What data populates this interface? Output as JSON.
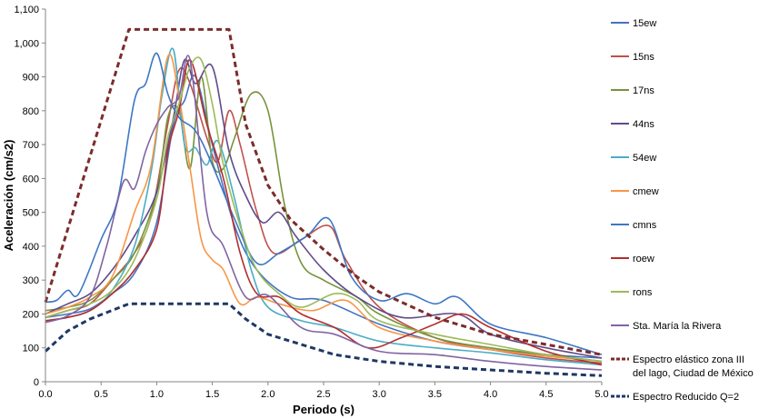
{
  "chart_data": {
    "type": "line",
    "xlabel": "Periodo (s)",
    "ylabel": "Aceleración (cm/s2)",
    "xlim": [
      0,
      5
    ],
    "ylim": [
      0,
      1100
    ],
    "xticks": [
      "0.0",
      "0.5",
      "1.0",
      "1.5",
      "2.0",
      "2.5",
      "3.0",
      "3.5",
      "4.0",
      "4.5",
      "5.0"
    ],
    "yticks": [
      "0",
      "100",
      "200",
      "300",
      "400",
      "500",
      "600",
      "700",
      "800",
      "900",
      "1,000",
      "1,100"
    ],
    "grid": false,
    "legend_position": "right",
    "series": [
      {
        "name": "15ew",
        "color": "#4472C4",
        "style": "solid",
        "x": [
          0,
          0.2,
          0.4,
          0.6,
          0.8,
          1.0,
          1.15,
          1.25,
          1.35,
          1.5,
          1.7,
          1.9,
          2.2,
          2.5,
          3.0,
          3.5,
          4.0,
          4.5,
          5.0
        ],
        "y": [
          190,
          200,
          215,
          260,
          320,
          470,
          760,
          830,
          900,
          700,
          460,
          330,
          250,
          240,
          170,
          120,
          95,
          80,
          70
        ]
      },
      {
        "name": "15ns",
        "color": "#C0504D",
        "style": "solid",
        "x": [
          0,
          0.2,
          0.4,
          0.6,
          0.8,
          0.95,
          1.1,
          1.2,
          1.3,
          1.45,
          1.55,
          1.65,
          1.75,
          1.9,
          2.05,
          2.3,
          2.55,
          2.7,
          3.0,
          3.5,
          4.0,
          4.5,
          5.0
        ],
        "y": [
          190,
          210,
          230,
          300,
          380,
          490,
          760,
          920,
          880,
          720,
          650,
          800,
          700,
          500,
          380,
          420,
          460,
          360,
          220,
          130,
          95,
          70,
          55
        ]
      },
      {
        "name": "17ns",
        "color": "#77933C",
        "style": "solid",
        "x": [
          0,
          0.2,
          0.4,
          0.6,
          0.8,
          1.0,
          1.1,
          1.2,
          1.3,
          1.4,
          1.5,
          1.6,
          1.7,
          1.85,
          2.0,
          2.15,
          2.3,
          2.5,
          2.8,
          3.0,
          3.5,
          4.0,
          4.5,
          5.0
        ],
        "y": [
          210,
          220,
          240,
          300,
          380,
          560,
          780,
          800,
          630,
          900,
          650,
          630,
          720,
          850,
          800,
          520,
          350,
          300,
          250,
          200,
          130,
          100,
          80,
          60
        ]
      },
      {
        "name": "44ns",
        "color": "#5F4B8B",
        "style": "solid",
        "x": [
          0,
          0.2,
          0.4,
          0.6,
          0.8,
          1.0,
          1.15,
          1.25,
          1.35,
          1.5,
          1.65,
          1.8,
          1.95,
          2.1,
          2.25,
          2.5,
          2.8,
          3.2,
          3.7,
          4.0,
          4.5,
          5.0
        ],
        "y": [
          200,
          230,
          260,
          330,
          430,
          560,
          780,
          950,
          880,
          930,
          680,
          550,
          470,
          500,
          430,
          330,
          250,
          190,
          200,
          140,
          100,
          70
        ]
      },
      {
        "name": "54ew",
        "color": "#4BACC6",
        "style": "solid",
        "x": [
          0,
          0.2,
          0.4,
          0.6,
          0.8,
          0.95,
          1.05,
          1.15,
          1.25,
          1.35,
          1.45,
          1.55,
          1.7,
          1.85,
          2.0,
          2.3,
          2.6,
          3.0,
          3.5,
          4.0,
          4.5,
          5.0
        ],
        "y": [
          180,
          190,
          210,
          270,
          400,
          620,
          850,
          980,
          700,
          690,
          640,
          710,
          540,
          330,
          220,
          180,
          160,
          120,
          100,
          85,
          65,
          50
        ]
      },
      {
        "name": "cmew",
        "color": "#F79646",
        "style": "solid",
        "x": [
          0,
          0.2,
          0.4,
          0.6,
          0.8,
          0.95,
          1.1,
          1.2,
          1.3,
          1.4,
          1.5,
          1.6,
          1.75,
          1.9,
          2.1,
          2.4,
          2.7,
          3.0,
          3.5,
          4.0,
          4.5,
          5.0
        ],
        "y": [
          200,
          220,
          250,
          310,
          500,
          640,
          960,
          840,
          630,
          420,
          360,
          330,
          230,
          250,
          230,
          210,
          240,
          160,
          120,
          95,
          75,
          60
        ]
      },
      {
        "name": "cmns",
        "color": "#3D77C4",
        "style": "solid",
        "x": [
          0,
          0.1,
          0.2,
          0.3,
          0.5,
          0.65,
          0.8,
          0.9,
          1.0,
          1.1,
          1.2,
          1.35,
          1.5,
          1.7,
          1.9,
          2.1,
          2.35,
          2.55,
          2.75,
          3.0,
          3.25,
          3.5,
          3.7,
          4.0,
          4.5,
          5.0
        ],
        "y": [
          235,
          240,
          270,
          260,
          420,
          540,
          830,
          880,
          970,
          850,
          780,
          740,
          640,
          480,
          350,
          380,
          430,
          480,
          310,
          240,
          260,
          230,
          250,
          170,
          130,
          80
        ]
      },
      {
        "name": "roew",
        "color": "#B22E2E",
        "style": "solid",
        "x": [
          0,
          0.2,
          0.4,
          0.6,
          0.8,
          1.0,
          1.1,
          1.2,
          1.3,
          1.45,
          1.6,
          1.75,
          1.9,
          2.1,
          2.3,
          2.6,
          2.9,
          3.2,
          3.5,
          3.75,
          4.0,
          4.5,
          5.0
        ],
        "y": [
          180,
          190,
          210,
          260,
          330,
          450,
          680,
          800,
          950,
          760,
          600,
          380,
          260,
          250,
          200,
          160,
          100,
          130,
          170,
          200,
          160,
          90,
          50
        ]
      },
      {
        "name": "rons",
        "color": "#9BBB59",
        "style": "solid",
        "x": [
          0,
          0.2,
          0.4,
          0.6,
          0.8,
          1.0,
          1.1,
          1.2,
          1.3,
          1.4,
          1.5,
          1.6,
          1.75,
          1.9,
          2.1,
          2.3,
          2.6,
          2.8,
          3.0,
          3.5,
          4.0,
          4.5,
          5.0
        ],
        "y": [
          190,
          210,
          230,
          270,
          360,
          540,
          720,
          820,
          930,
          950,
          820,
          640,
          460,
          330,
          260,
          220,
          260,
          240,
          180,
          140,
          110,
          80,
          60
        ]
      },
      {
        "name": "Sta. María la Rivera",
        "color": "#8064A2",
        "style": "solid",
        "x": [
          0,
          0.2,
          0.4,
          0.55,
          0.7,
          0.8,
          0.9,
          1.0,
          1.1,
          1.2,
          1.3,
          1.45,
          1.6,
          1.8,
          2.0,
          2.3,
          2.6,
          3.0,
          3.5,
          4.0,
          4.5,
          5.0
        ],
        "y": [
          175,
          195,
          250,
          400,
          590,
          570,
          680,
          760,
          810,
          840,
          950,
          500,
          400,
          250,
          255,
          160,
          140,
          90,
          80,
          60,
          45,
          35
        ]
      },
      {
        "name": "Espectro elástico zona III del lago, Ciudad de México",
        "color": "#7B2C2C",
        "style": "dashed",
        "x": [
          0,
          0.75,
          1.65,
          1.8,
          2.0,
          2.2,
          2.5,
          2.8,
          3.0,
          3.5,
          4.0,
          4.5,
          5.0
        ],
        "y": [
          235,
          1040,
          1040,
          760,
          580,
          480,
          390,
          310,
          265,
          190,
          140,
          110,
          80
        ]
      },
      {
        "name": "Espectro Reducido Q=2",
        "color": "#1F3864",
        "style": "dashed",
        "x": [
          0,
          0.2,
          0.4,
          0.75,
          1.65,
          1.8,
          2.0,
          2.3,
          2.6,
          3.0,
          3.5,
          4.0,
          4.5,
          5.0
        ],
        "y": [
          90,
          150,
          185,
          230,
          230,
          185,
          140,
          110,
          80,
          60,
          45,
          35,
          25,
          18
        ]
      }
    ]
  }
}
